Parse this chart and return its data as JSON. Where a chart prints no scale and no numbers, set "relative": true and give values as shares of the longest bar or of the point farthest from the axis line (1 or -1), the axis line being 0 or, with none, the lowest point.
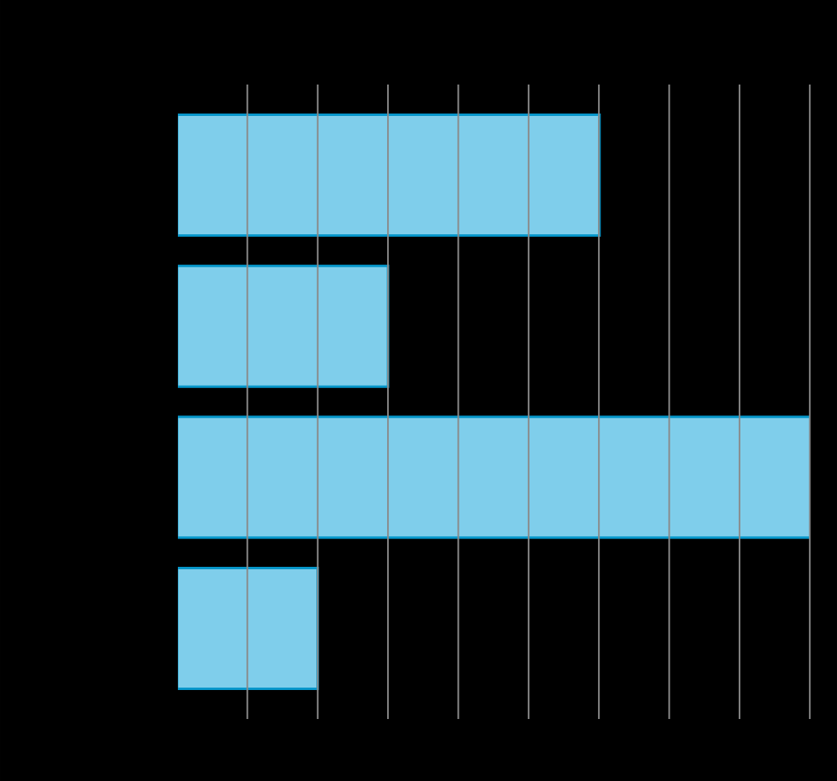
{
  "chart_data": {
    "type": "bar",
    "orientation": "horizontal",
    "relative": true,
    "categories": [
      null,
      null,
      null,
      null
    ],
    "values": [
      0.667,
      0.333,
      1,
      0.222
    ],
    "color": "#7fceeb",
    "grid": "x"
  }
}
